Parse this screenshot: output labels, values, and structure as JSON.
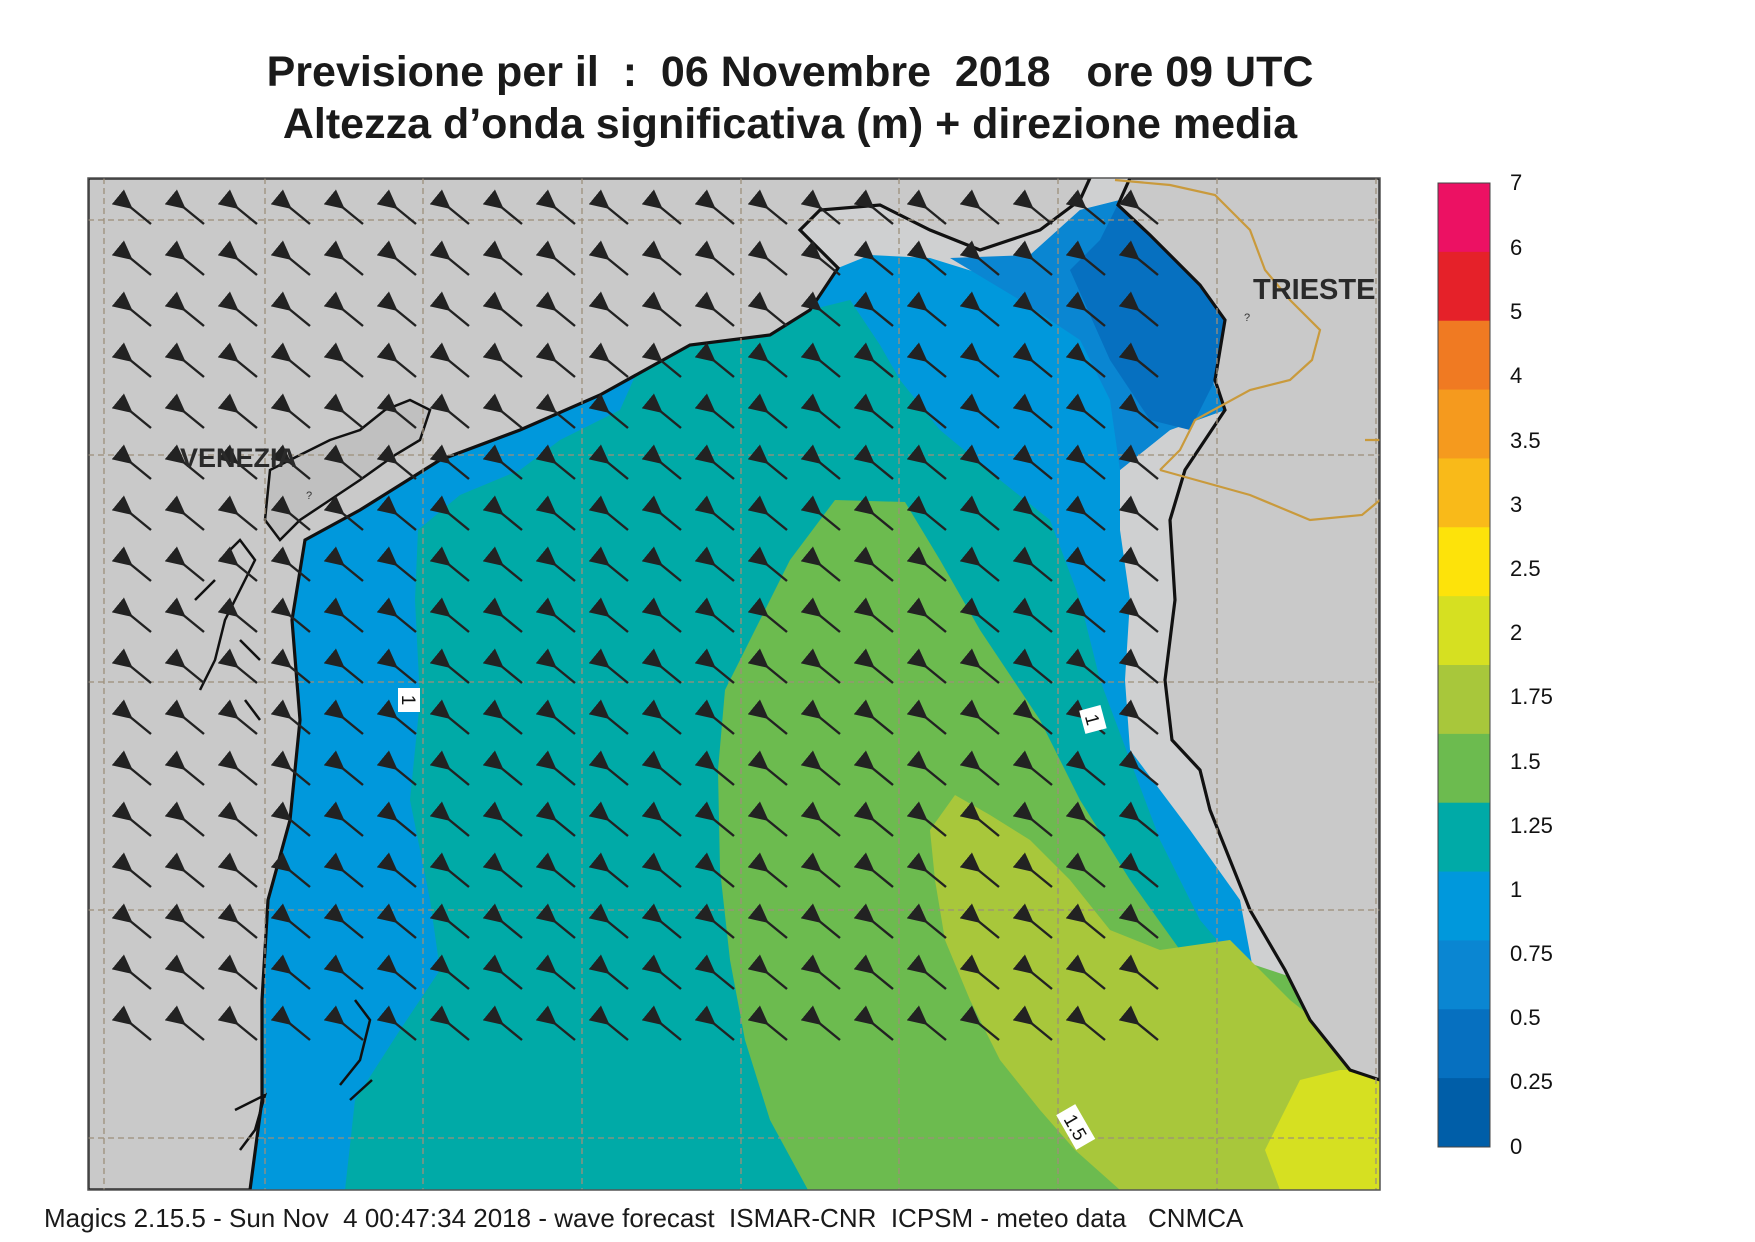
{
  "title": {
    "line1": "Previsione per il  :  06 Novembre  2018   ore 09 UTC",
    "line2": "Altezza d’onda significativa (m) + direzione media"
  },
  "labels": {
    "venezia": "VENEZIA",
    "trieste": "TRIESTE",
    "contour_1a": "1",
    "contour_1b": "1",
    "contour_15": "1.5",
    "small_mark": "?"
  },
  "legend": {
    "ticks": [
      "7",
      "6",
      "5",
      "4",
      "3.5",
      "3",
      "2.5",
      "2",
      "1.75",
      "1.5",
      "1.25",
      "1",
      "0.75",
      "0.5",
      "0.25",
      "0"
    ],
    "colors": [
      "#ec1163",
      "#e52129",
      "#f07a22",
      "#f59a1e",
      "#f9ba19",
      "#fde30a",
      "#d6e021",
      "#a8c73b",
      "#6cbb4f",
      "#00aaa7",
      "#0098dc",
      "#0a86d2",
      "#0670c0",
      "#005ea8"
    ]
  },
  "palette": {
    "land": "#c9c9c9",
    "land_light": "#cfd0d1",
    "border": "#c99a3c",
    "arrow": "#222222"
  },
  "footer": "Magics 2.15.5 - Sun Nov  4 00:47:34 2018 - wave forecast  ISMAR-CNR  ICPSM - meteo data   CNMCA",
  "wave_direction": "NW"
}
